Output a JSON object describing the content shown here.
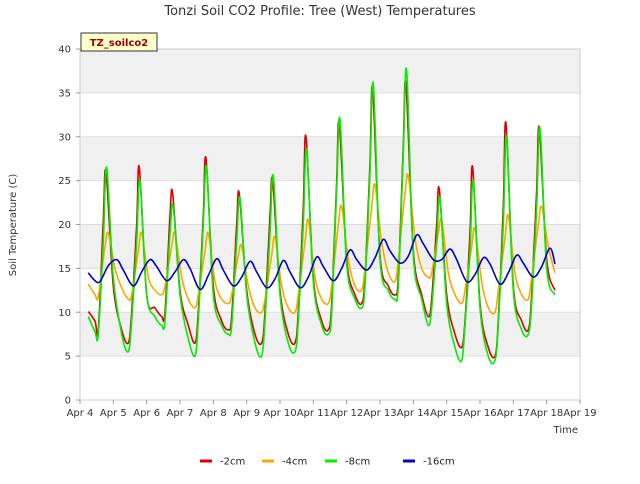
{
  "chart_data": {
    "type": "line",
    "title": "Tonzi Soil CO2 Profile: Tree (West) Temperatures",
    "xlabel": "Time",
    "ylabel": "Soil Temperature (C)",
    "badge": "TZ_soilco2",
    "ylim": [
      0,
      40
    ],
    "xlim": [
      4,
      19
    ],
    "yticks": [
      0,
      5,
      10,
      15,
      20,
      25,
      30,
      35,
      40
    ],
    "xticks": [
      {
        "v": 4,
        "label": "Apr 4"
      },
      {
        "v": 5,
        "label": "Apr 5"
      },
      {
        "v": 6,
        "label": "Apr 6"
      },
      {
        "v": 7,
        "label": "Apr 7"
      },
      {
        "v": 8,
        "label": "Apr 8"
      },
      {
        "v": 9,
        "label": "Apr 9"
      },
      {
        "v": 10,
        "label": "Apr 10"
      },
      {
        "v": 11,
        "label": "Apr 11"
      },
      {
        "v": 12,
        "label": "Apr 12"
      },
      {
        "v": 13,
        "label": "Apr 13"
      },
      {
        "v": 14,
        "label": "Apr 14"
      },
      {
        "v": 15,
        "label": "Apr 15"
      },
      {
        "v": 16,
        "label": "Apr 16"
      },
      {
        "v": 17,
        "label": "Apr 17"
      },
      {
        "v": 18,
        "label": "Apr 18"
      },
      {
        "v": 19,
        "label": "Apr 19"
      }
    ],
    "grid": true,
    "legend_position": "bottom",
    "series": [
      {
        "name": "-2cm",
        "color": "#dd0000",
        "x": [
          4.25,
          4.45,
          4.55,
          4.7,
          4.78,
          5.0,
          5.25,
          5.45,
          5.55,
          5.7,
          5.78,
          6.0,
          6.25,
          6.45,
          6.55,
          6.7,
          6.78,
          7.0,
          7.25,
          7.45,
          7.55,
          7.7,
          7.78,
          8.0,
          8.25,
          8.45,
          8.55,
          8.7,
          8.78,
          9.0,
          9.25,
          9.45,
          9.55,
          9.7,
          9.78,
          10.0,
          10.25,
          10.45,
          10.55,
          10.7,
          10.78,
          11.0,
          11.25,
          11.45,
          11.55,
          11.7,
          11.78,
          12.0,
          12.25,
          12.45,
          12.55,
          12.7,
          12.78,
          13.0,
          13.25,
          13.45,
          13.55,
          13.7,
          13.78,
          14.0,
          14.25,
          14.45,
          14.55,
          14.7,
          14.78,
          15.0,
          15.25,
          15.45,
          15.55,
          15.7,
          15.78,
          16.0,
          16.25,
          16.45,
          16.55,
          16.7,
          16.78,
          17.0,
          17.25,
          17.45,
          17.55,
          17.7,
          17.78,
          18.0,
          18.25
        ],
        "y": [
          10.1,
          9.0,
          8.0,
          20.5,
          26.0,
          13.0,
          8.0,
          6.5,
          10.0,
          20.0,
          26.5,
          12.0,
          10.5,
          9.5,
          10.0,
          21.0,
          23.5,
          12.5,
          8.5,
          6.5,
          10.0,
          21.0,
          27.5,
          13.0,
          9.0,
          8.0,
          9.5,
          20.0,
          23.5,
          12.5,
          7.5,
          6.5,
          10.0,
          21.0,
          25.0,
          12.5,
          7.5,
          6.5,
          10.0,
          22.0,
          30.0,
          14.0,
          9.0,
          8.0,
          11.0,
          25.0,
          31.5,
          16.0,
          12.0,
          11.0,
          14.0,
          27.0,
          35.5,
          16.5,
          13.0,
          12.0,
          14.0,
          29.0,
          36.0,
          17.0,
          12.0,
          9.5,
          11.5,
          20.0,
          24.0,
          12.0,
          7.5,
          6.0,
          9.0,
          19.0,
          26.5,
          11.0,
          6.0,
          5.0,
          9.0,
          22.0,
          31.5,
          13.0,
          9.0,
          8.0,
          12.0,
          24.0,
          31.0,
          16.0,
          12.5
        ]
      },
      {
        "name": "-4cm",
        "color": "#ffa500",
        "x": [
          4.25,
          4.45,
          4.55,
          4.75,
          4.85,
          5.05,
          5.25,
          5.45,
          5.55,
          5.75,
          5.85,
          6.05,
          6.25,
          6.45,
          6.55,
          6.75,
          6.85,
          7.05,
          7.25,
          7.45,
          7.55,
          7.75,
          7.85,
          8.05,
          8.25,
          8.45,
          8.55,
          8.75,
          8.85,
          9.05,
          9.25,
          9.45,
          9.55,
          9.75,
          9.85,
          10.05,
          10.25,
          10.45,
          10.55,
          10.75,
          10.85,
          11.05,
          11.25,
          11.45,
          11.55,
          11.75,
          11.85,
          12.05,
          12.25,
          12.45,
          12.55,
          12.75,
          12.85,
          13.05,
          13.25,
          13.45,
          13.55,
          13.75,
          13.85,
          14.05,
          14.25,
          14.45,
          14.55,
          14.75,
          14.85,
          15.05,
          15.25,
          15.45,
          15.55,
          15.75,
          15.85,
          16.05,
          16.25,
          16.45,
          16.55,
          16.75,
          16.85,
          17.05,
          17.25,
          17.45,
          17.55,
          17.75,
          17.85,
          18.05,
          18.25
        ],
        "y": [
          13.2,
          12.0,
          11.8,
          17.5,
          19.0,
          15.0,
          12.8,
          11.5,
          12.0,
          17.0,
          19.0,
          14.0,
          12.5,
          12.0,
          13.0,
          17.5,
          19.0,
          14.0,
          11.5,
          10.5,
          12.0,
          17.0,
          19.0,
          13.5,
          11.5,
          11.0,
          12.0,
          16.5,
          17.5,
          13.0,
          10.5,
          10.0,
          11.5,
          16.5,
          18.5,
          13.0,
          10.5,
          10.0,
          12.0,
          18.0,
          20.5,
          14.0,
          11.5,
          11.0,
          13.0,
          20.0,
          22.0,
          16.0,
          13.0,
          12.5,
          15.0,
          22.0,
          24.5,
          18.0,
          14.5,
          13.5,
          16.0,
          23.5,
          25.5,
          18.5,
          15.0,
          14.0,
          14.5,
          19.0,
          20.5,
          14.5,
          12.0,
          11.0,
          12.5,
          17.5,
          19.5,
          13.5,
          10.5,
          10.0,
          12.5,
          18.5,
          21.0,
          14.5,
          12.0,
          11.5,
          14.0,
          20.0,
          22.0,
          17.5,
          14.5
        ]
      },
      {
        "name": "-8cm",
        "color": "#00ee00",
        "x": [
          4.25,
          4.45,
          4.55,
          4.7,
          4.8,
          5.0,
          5.25,
          5.45,
          5.55,
          5.7,
          5.8,
          6.0,
          6.25,
          6.45,
          6.55,
          6.7,
          6.8,
          7.0,
          7.25,
          7.45,
          7.55,
          7.7,
          7.8,
          8.0,
          8.25,
          8.45,
          8.55,
          8.7,
          8.8,
          9.0,
          9.25,
          9.45,
          9.55,
          9.7,
          9.8,
          10.0,
          10.25,
          10.45,
          10.55,
          10.7,
          10.8,
          11.0,
          11.25,
          11.45,
          11.55,
          11.7,
          11.8,
          12.0,
          12.25,
          12.45,
          12.55,
          12.7,
          12.8,
          13.0,
          13.25,
          13.45,
          13.55,
          13.7,
          13.8,
          14.0,
          14.25,
          14.45,
          14.55,
          14.7,
          14.8,
          15.0,
          15.25,
          15.45,
          15.55,
          15.7,
          15.8,
          16.0,
          16.25,
          16.45,
          16.55,
          16.7,
          16.8,
          17.0,
          17.25,
          17.45,
          17.55,
          17.7,
          17.8,
          18.0,
          18.25
        ],
        "y": [
          9.5,
          7.8,
          7.5,
          18.0,
          26.5,
          14.0,
          7.5,
          5.5,
          9.0,
          18.0,
          25.0,
          12.0,
          9.5,
          8.5,
          9.0,
          19.0,
          22.0,
          12.0,
          7.0,
          5.0,
          9.0,
          20.0,
          26.5,
          12.0,
          8.5,
          7.5,
          8.5,
          18.0,
          23.0,
          12.0,
          6.5,
          5.0,
          9.0,
          19.0,
          25.5,
          12.0,
          6.5,
          5.5,
          9.0,
          20.0,
          28.5,
          13.5,
          8.5,
          7.5,
          10.0,
          24.0,
          32.0,
          15.5,
          11.5,
          10.5,
          13.0,
          26.0,
          36.0,
          16.0,
          12.5,
          11.5,
          13.0,
          28.0,
          37.5,
          16.5,
          11.5,
          8.5,
          10.5,
          18.0,
          23.0,
          11.0,
          6.0,
          4.5,
          8.5,
          17.0,
          25.0,
          10.5,
          5.0,
          4.5,
          8.5,
          20.0,
          30.0,
          12.5,
          8.0,
          7.5,
          11.0,
          22.0,
          31.0,
          15.0,
          12.0
        ]
      },
      {
        "name": "-16cm",
        "color": "#0000cc",
        "x": [
          4.25,
          4.45,
          4.6,
          4.85,
          5.1,
          5.3,
          5.6,
          5.85,
          6.1,
          6.3,
          6.6,
          6.85,
          7.1,
          7.3,
          7.6,
          7.85,
          8.1,
          8.3,
          8.6,
          8.85,
          9.1,
          9.3,
          9.6,
          9.85,
          10.1,
          10.3,
          10.6,
          10.85,
          11.1,
          11.3,
          11.6,
          11.85,
          12.1,
          12.3,
          12.6,
          12.85,
          13.1,
          13.3,
          13.6,
          13.85,
          14.1,
          14.3,
          14.6,
          14.85,
          15.1,
          15.3,
          15.6,
          15.85,
          16.1,
          16.3,
          16.6,
          16.85,
          17.1,
          17.3,
          17.6,
          17.85,
          18.1,
          18.25
        ],
        "y": [
          14.5,
          13.6,
          13.5,
          15.3,
          16.0,
          14.8,
          13.0,
          14.6,
          16.0,
          15.2,
          13.6,
          14.6,
          16.0,
          15.0,
          12.6,
          14.2,
          16.1,
          14.8,
          13.0,
          14.0,
          15.8,
          14.6,
          12.8,
          13.8,
          15.9,
          14.6,
          12.8,
          14.0,
          16.3,
          15.2,
          13.6,
          15.0,
          17.1,
          16.0,
          14.8,
          16.2,
          18.3,
          17.0,
          15.6,
          16.4,
          18.8,
          17.8,
          16.0,
          16.0,
          17.2,
          16.0,
          13.5,
          14.3,
          16.2,
          15.5,
          13.2,
          14.5,
          16.5,
          15.6,
          14.0,
          15.2,
          17.3,
          15.5
        ]
      }
    ]
  }
}
